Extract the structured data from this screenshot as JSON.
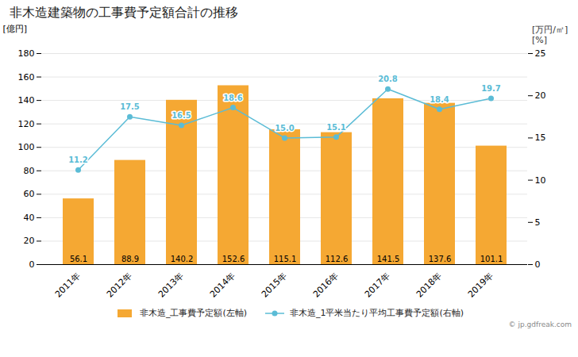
{
  "chart_data": {
    "type": "bar",
    "title": "非木造建築物の工事費予定額合計の推移",
    "categories": [
      "2011年",
      "2012年",
      "2013年",
      "2014年",
      "2015年",
      "2016年",
      "2017年",
      "2018年",
      "2019年"
    ],
    "ylabel": "[億円]",
    "y2label": [
      "[万円/㎡]",
      "[%]"
    ],
    "ylim": [
      0,
      180
    ],
    "yticks": [
      0,
      20,
      40,
      60,
      80,
      100,
      120,
      140,
      160,
      180
    ],
    "y2lim": [
      0,
      25
    ],
    "y2ticks": [
      0,
      5,
      10,
      15,
      20,
      25
    ],
    "grid": true,
    "legend": "bottom",
    "data_labels": true,
    "caption": "© jp.gdfreak.com",
    "series": [
      {
        "name": "非木造_工事費予定額(左軸)",
        "type": "bar",
        "color": "#f5a833",
        "values": [
          56.1,
          88.9,
          140.2,
          152.6,
          115.1,
          112.6,
          141.5,
          137.6,
          101.1
        ]
      },
      {
        "name": "非木造_1平米当たり平均工事費予定額(右軸)",
        "type": "line",
        "axis": "y2",
        "color": "#5bbcd6",
        "marker": "circle",
        "values": [
          11.2,
          17.5,
          16.5,
          18.6,
          15.0,
          15.1,
          20.8,
          18.4,
          19.7
        ],
        "value_labels": [
          "11.2",
          "17.5",
          "16.5",
          "18.6",
          "15.0",
          "15.1",
          "20.8",
          "18.4",
          "19.7"
        ]
      }
    ]
  }
}
